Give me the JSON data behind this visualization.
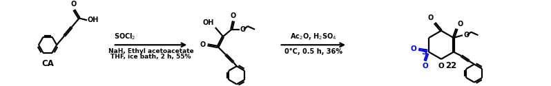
{
  "bg_color": "#ffffff",
  "so_color": "#0000ff",
  "label_ca": "CA",
  "label_22": "22",
  "reagent1_above": "SOCl$_2$",
  "reagent1_line1": "NaH, Ethyl acetoacetate",
  "reagent1_line2": "THF, ice bath, 2 h, 55%",
  "reagent2_above": "Ac$_2$O, H$_2$SO$_4$",
  "reagent2_below": "0°C, 0.5 h, 36%",
  "figsize": [
    7.98,
    1.25
  ],
  "dpi": 100
}
